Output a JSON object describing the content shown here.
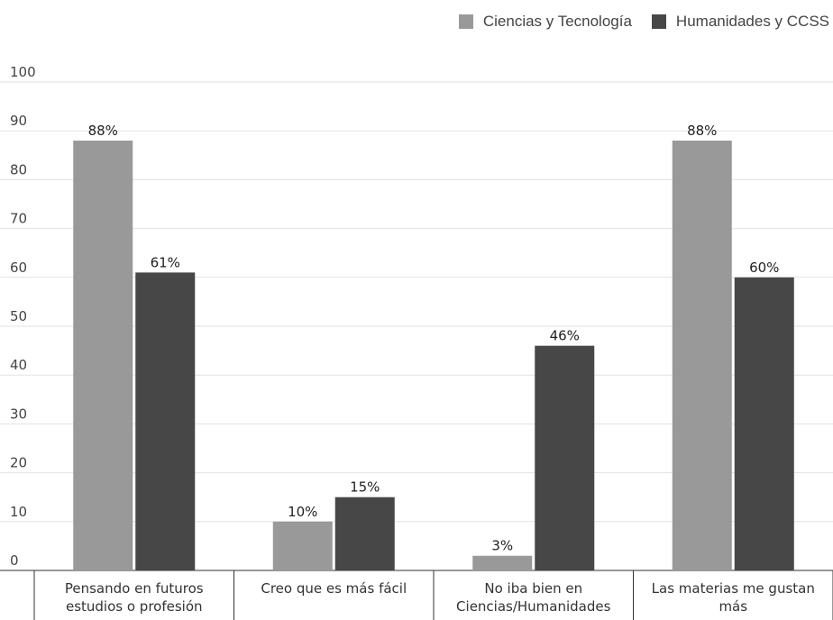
{
  "chart_data": {
    "type": "bar",
    "title": "",
    "xlabel": "",
    "ylabel": "",
    "ylim": [
      0,
      100
    ],
    "yticks": [
      0,
      10,
      20,
      30,
      40,
      50,
      60,
      70,
      80,
      90,
      100
    ],
    "grid": true,
    "legend_position": "top-right",
    "categories": [
      [
        "Pensando en futuros",
        "estudios o profesión"
      ],
      [
        "Creo que es más fácil"
      ],
      [
        "No iba bien en",
        "Ciencias/Humanidades"
      ],
      [
        "Las materias me gustan",
        "más"
      ]
    ],
    "series": [
      {
        "name": "Ciencias y Tecnología",
        "color": "#999999",
        "values": [
          88,
          10,
          3,
          88
        ],
        "labels": [
          "88%",
          "10%",
          "3%",
          "88%"
        ]
      },
      {
        "name": "Humanidades y CCSS",
        "color": "#474747",
        "values": [
          61,
          15,
          46,
          60
        ],
        "labels": [
          "61%",
          "15%",
          "46%",
          "60%"
        ]
      }
    ]
  }
}
